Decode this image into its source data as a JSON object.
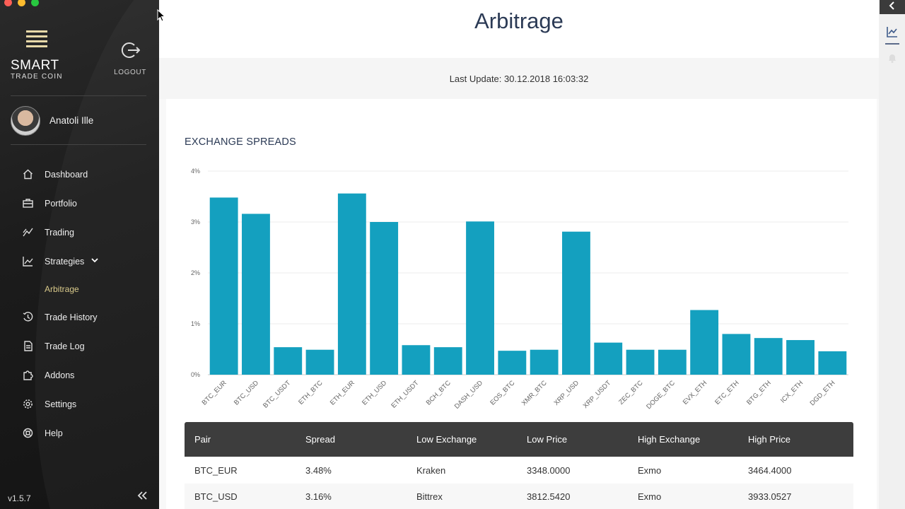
{
  "app": {
    "brand": "SMART",
    "brand_sub": "TRADE COIN",
    "logout_label": "LOGOUT",
    "user_name": "Anatoli Ille",
    "version": "v1.5.7"
  },
  "nav": {
    "items": [
      {
        "label": "Dashboard",
        "icon": "home-icon"
      },
      {
        "label": "Portfolio",
        "icon": "portfolio-icon"
      },
      {
        "label": "Trading",
        "icon": "trading-icon"
      },
      {
        "label": "Strategies",
        "icon": "strategies-icon"
      },
      {
        "label": "Trade History",
        "icon": "history-icon"
      },
      {
        "label": "Trade Log",
        "icon": "log-icon"
      },
      {
        "label": "Addons",
        "icon": "puzzle-icon"
      },
      {
        "label": "Settings",
        "icon": "gear-icon"
      },
      {
        "label": "Help",
        "icon": "help-icon"
      }
    ],
    "sub_item": "Arbitrage"
  },
  "page": {
    "title": "Arbitrage",
    "last_update": "Last Update: 30.12.2018 16:03:32",
    "section_title": "EXCHANGE SPREADS"
  },
  "colors": {
    "bar": "#14a0bf",
    "table_header": "#3d3d3d",
    "accent_submenu": "#d8c98a"
  },
  "chart_data": {
    "type": "bar",
    "categories": [
      "BTC_EUR",
      "BTC_USD",
      "BTC_USDT",
      "ETH_BTC",
      "ETH_EUR",
      "ETH_USD",
      "ETH_USDT",
      "BCH_BTC",
      "DASH_USD",
      "EOS_BTC",
      "XMR_BTC",
      "XRP_USD",
      "XRP_USDT",
      "ZEC_BTC",
      "DOGE_BTC",
      "EVX_ETH",
      "ETC_ETH",
      "BTG_ETH",
      "ICX_ETH",
      "DGD_ETH"
    ],
    "values": [
      3.48,
      3.16,
      0.54,
      0.49,
      3.56,
      3.0,
      0.58,
      0.54,
      3.01,
      0.47,
      0.49,
      2.81,
      0.63,
      0.49,
      0.49,
      1.27,
      0.8,
      0.72,
      0.68,
      0.46
    ],
    "ylim": [
      0,
      4
    ],
    "yticks": [
      "0%",
      "1%",
      "2%",
      "3%",
      "4%"
    ],
    "grid": true
  },
  "table": {
    "headers": [
      "Pair",
      "Spread",
      "Low Exchange",
      "Low Price",
      "High Exchange",
      "High Price"
    ],
    "rows": [
      [
        "BTC_EUR",
        "3.48%",
        "Kraken",
        "3348.0000",
        "Exmo",
        "3464.4000"
      ],
      [
        "BTC_USD",
        "3.16%",
        "Bittrex",
        "3812.5420",
        "Exmo",
        "3933.0527"
      ]
    ]
  }
}
